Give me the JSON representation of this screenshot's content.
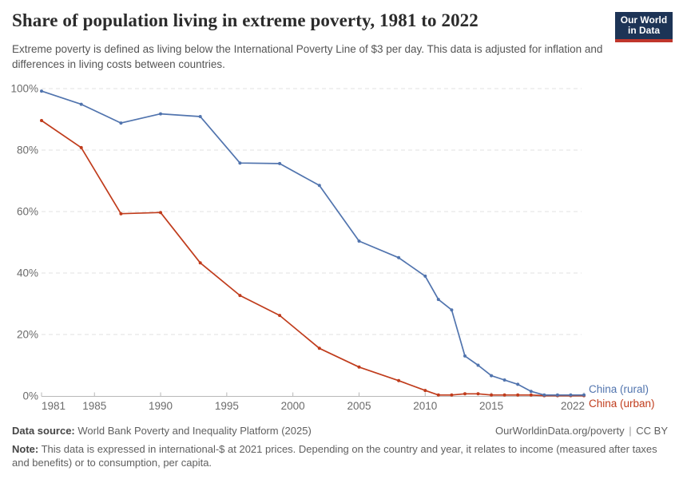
{
  "header": {
    "logo": {
      "line1": "Our World",
      "line2": "in Data",
      "bg_color": "#1d3456",
      "accent_color": "#c0362c"
    }
  },
  "chart_data": {
    "type": "line",
    "title": "Share of population living in extreme poverty, 1981 to 2022",
    "subtitle": "Extreme poverty is defined as living below the International Poverty Line of $3 per day. This data is adjusted for inflation and differences in living costs between countries.",
    "x": [
      1981,
      1984,
      1987,
      1990,
      1993,
      1996,
      1999,
      2002,
      2005,
      2008,
      2010,
      2011,
      2012,
      2013,
      2014,
      2015,
      2016,
      2017,
      2018,
      2019,
      2020,
      2021,
      2022
    ],
    "series": [
      {
        "name": "China (rural)",
        "color": "#5174ae",
        "values": [
          99.2,
          94.9,
          88.8,
          91.8,
          90.9,
          75.8,
          75.6,
          68.5,
          50.4,
          45.0,
          39.0,
          31.4,
          28.0,
          13.0,
          10.0,
          6.6,
          5.2,
          3.8,
          1.5,
          0.3,
          0.3,
          0.3,
          0.3
        ]
      },
      {
        "name": "China (urban)",
        "color": "#c03c1c",
        "values": [
          89.6,
          80.8,
          59.3,
          59.7,
          43.3,
          32.7,
          26.2,
          15.5,
          9.4,
          5.0,
          1.8,
          0.3,
          0.3,
          0.7,
          0.7,
          0.3,
          0.3,
          0.3,
          0.3,
          0.1,
          0.1,
          0.1,
          0.1
        ]
      }
    ],
    "xlabel": "",
    "ylabel": "",
    "xlim": [
      1981,
      2022
    ],
    "ylim": [
      0,
      100
    ],
    "x_ticks": [
      1981,
      1985,
      1990,
      1995,
      2000,
      2005,
      2010,
      2015,
      2022
    ],
    "x_tick_labels": [
      "1981",
      "1985",
      "1990",
      "1995",
      "2000",
      "2005",
      "2010",
      "2015",
      "2022"
    ],
    "y_ticks": [
      0,
      20,
      40,
      60,
      80,
      100
    ],
    "y_tick_labels": [
      "0%",
      "20%",
      "40%",
      "60%",
      "80%",
      "100%"
    ],
    "grid": "horizontal-dashed",
    "legend_position": "right-end-of-lines",
    "axis_color": "#b8b8b8",
    "grid_color": "#e2e2e2",
    "tick_label_color": "#6b6b6b"
  },
  "footer": {
    "source_label": "Data source:",
    "source_text": "World Bank Poverty and Inequality Platform (2025)",
    "link": "OurWorldinData.org/poverty",
    "sep": "|",
    "license": "CC BY",
    "note_label": "Note:",
    "note_text": "This data is expressed in international-$ at 2021 prices. Depending on the country and year, it relates to income (measured after taxes and benefits) or to consumption, per capita."
  }
}
